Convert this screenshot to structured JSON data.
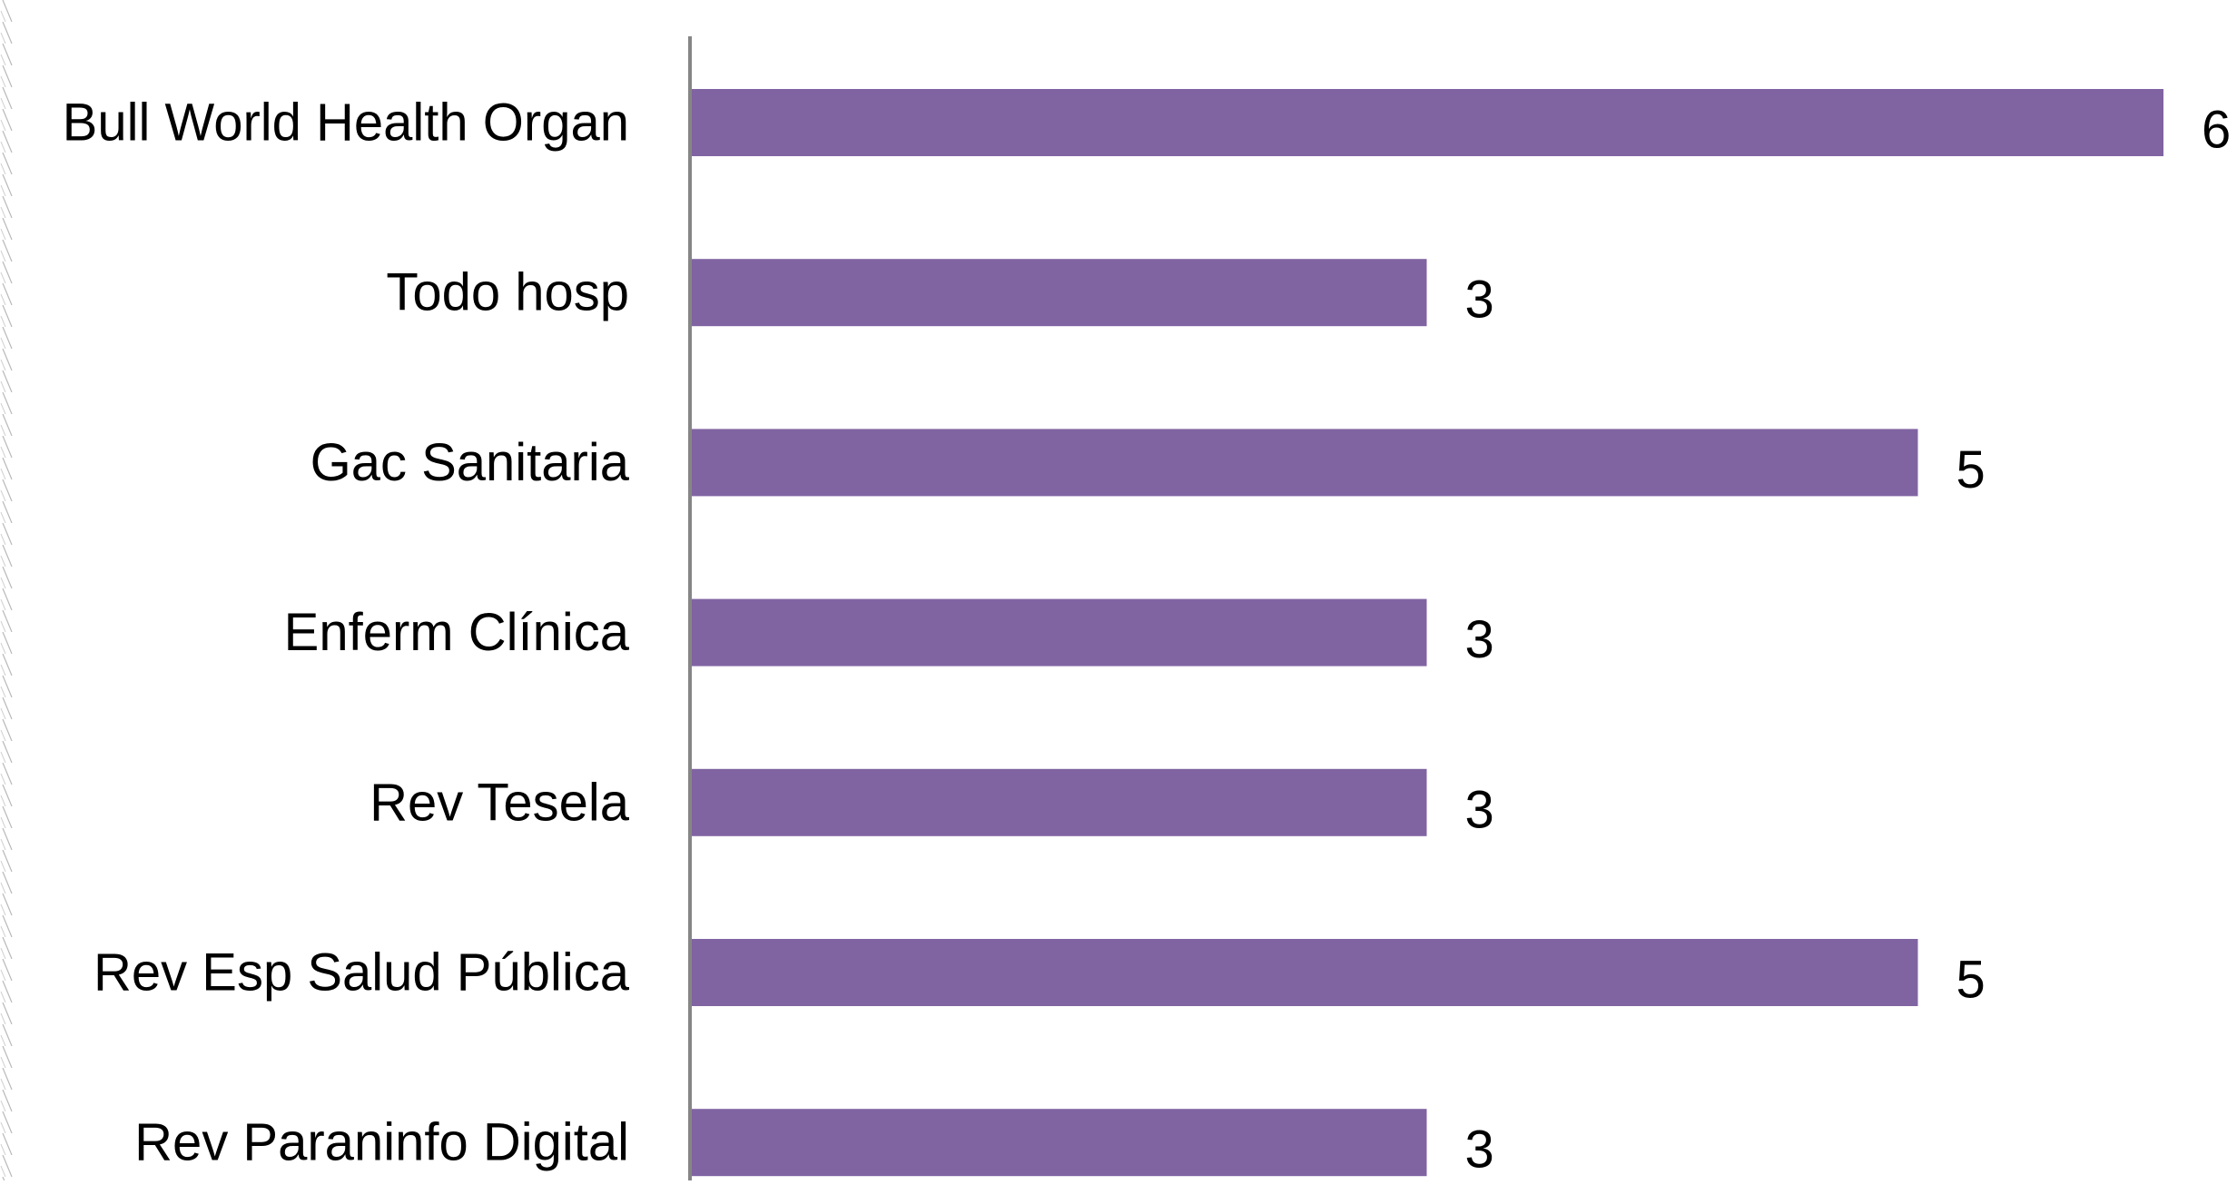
{
  "chart_data": {
    "type": "bar",
    "orientation": "horizontal",
    "title": "",
    "xlabel": "",
    "ylabel": "",
    "categories": [
      "Bull World Health  Organ",
      "Todo hosp",
      "Gac Sanitaria",
      "Enferm Clínica",
      "Rev Tesela",
      "Rev Esp  Salud  Pública",
      "Rev Paraninfo Digital"
    ],
    "values": [
      6,
      3,
      5,
      3,
      3,
      5,
      3
    ],
    "data_labels": [
      "6",
      "3",
      "5",
      "3",
      "3",
      "5",
      "3"
    ],
    "xlim": [
      0,
      6
    ],
    "grid": false,
    "legend": "none",
    "bar_color": "#8064a2",
    "axis_color": "#868686"
  }
}
